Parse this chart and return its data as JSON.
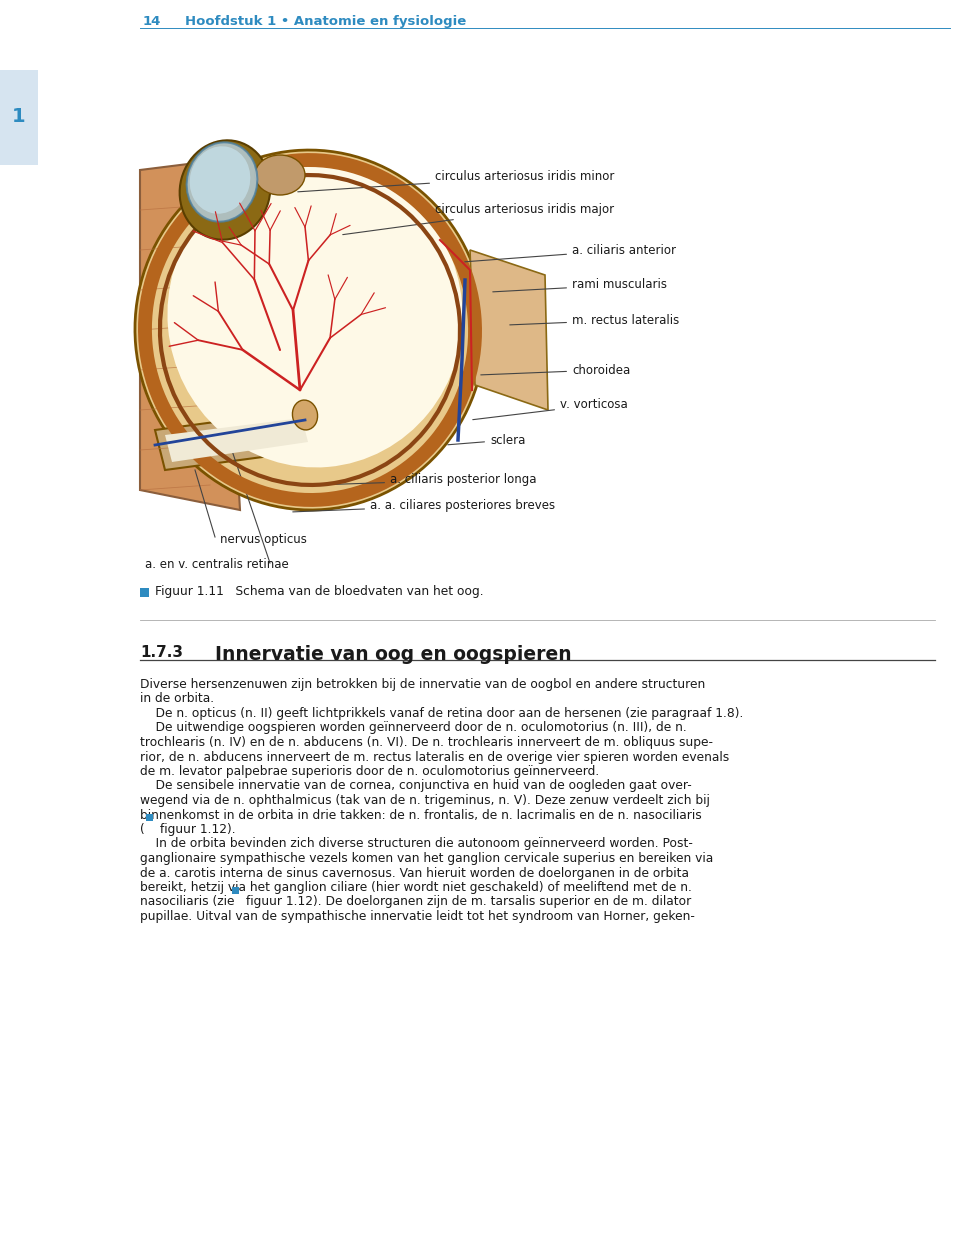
{
  "page_header_number": "14",
  "page_header_text": "Hoofdstuk 1 • Anatomie en fysiologie",
  "chapter_tab": "1",
  "figure_caption": "Figuur 1.11   Schema van de bloedvaten van het oog.",
  "section_number": "1.7.3",
  "section_title": "Innervatie van oog en oogspieren",
  "header_color": "#2e8bc0",
  "tab_bg_color": "#d6e4f0",
  "tab_text_color": "#2e8bc0",
  "body_text_color": "#1a1a1a",
  "figure_icon_color": "#2e8bc0",
  "background_color": "#ffffff",
  "body_lines": [
    "Diverse hersenzenuwen zijn betrokken bij de innervatie van de oogbol en andere structuren",
    "in de orbita.",
    "    De n. opticus (n. II) geeft lichtprikkels vanaf de retina door aan de hersenen (zie paragraaf 1.8).",
    "    De uitwendige oogspieren worden geïnnerveerd door de n. oculomotorius (n. III), de n.",
    "trochlearis (n. IV) en de n. abducens (n. VI). De n. trochlearis innerveert de m. obliquus supe-",
    "rior, de n. abducens innerveert de m. rectus lateralis en de overige vier spieren worden evenals",
    "de m. levator palpebrae superioris door de n. oculomotorius geïnnerveerd.",
    "    De sensibele innervatie van de cornea, conjunctiva en huid van de oogleden gaat over-",
    "wegend via de n. ophthalmicus (tak van de n. trigeminus, n. V). Deze zenuw verdeelt zich bij",
    "binnenkomst in de orbita in drie takken: de n. frontalis, de n. lacrimalis en de n. nasociliaris",
    "(■ figuur 1.12).",
    "    In de orbita bevinden zich diverse structuren die autonoom geïnnerveerd worden. Post-",
    "ganglionaire sympathische vezels komen van het ganglion cervicale superius en bereiken via",
    "de a. carotis interna de sinus cavernosus. Van hieruit worden de doelorganen in de orbita",
    "bereikt, hetzij via het ganglion ciliare (hier wordt niet geschakeld) of meeliftend met de n.",
    "nasociliaris (zie ■ figuur 1.12). De doelorganen zijn de m. tarsalis superior en de m. dilator",
    "pupillae. Uitval van de sympathische innervatie leidt tot het syndroom van Horner, geken-"
  ]
}
